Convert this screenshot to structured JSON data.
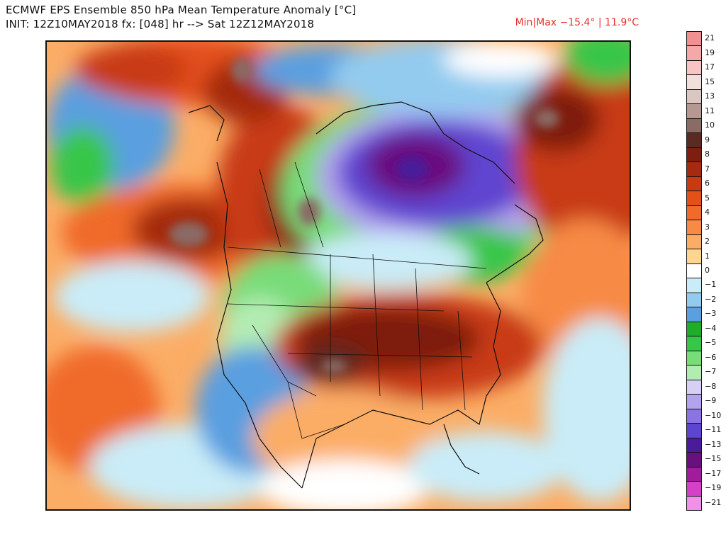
{
  "header": {
    "title_line1": "ECMWF EPS Ensemble 850 hPa Mean Temperature Anomaly [°C]",
    "title_line2": "INIT: 12Z10MAY2018 fx: [048] hr --> Sat 12Z12MAY2018",
    "minmax_text": "Min|Max −15.4° | 11.9°C"
  },
  "map": {
    "region": "North America",
    "variable": "850 hPa Mean Temperature Anomaly",
    "unit": "°C",
    "min_value": -15.4,
    "max_value": 11.9
  },
  "colorbar": {
    "bins": [
      {
        "label": "21",
        "color": "#f09090"
      },
      {
        "label": "19",
        "color": "#f5a8a8"
      },
      {
        "label": "17",
        "color": "#f9c4c4"
      },
      {
        "label": "15",
        "color": "#efe0dc"
      },
      {
        "label": "13",
        "color": "#dac7c2"
      },
      {
        "label": "11",
        "color": "#b59891"
      },
      {
        "label": "10",
        "color": "#8a6b65"
      },
      {
        "label": "9",
        "color": "#5a2b22"
      },
      {
        "label": "8",
        "color": "#7e1e10"
      },
      {
        "label": "7",
        "color": "#a52a10"
      },
      {
        "label": "6",
        "color": "#c83a12"
      },
      {
        "label": "5",
        "color": "#e4501a"
      },
      {
        "label": "4",
        "color": "#f06a2c"
      },
      {
        "label": "3",
        "color": "#f78a45"
      },
      {
        "label": "2",
        "color": "#fbad66"
      },
      {
        "label": "1",
        "color": "#fdd58f"
      },
      {
        "label": "0",
        "color": "#ffffff"
      },
      {
        "label": "−1",
        "color": "#c9ecf8"
      },
      {
        "label": "−2",
        "color": "#93cbef"
      },
      {
        "label": "−3",
        "color": "#5a9fe0"
      },
      {
        "label": "−4",
        "color": "#1fae2a"
      },
      {
        "label": "−5",
        "color": "#38c648"
      },
      {
        "label": "−6",
        "color": "#78dc78"
      },
      {
        "label": "−7",
        "color": "#b3ecb3"
      },
      {
        "label": "−8",
        "color": "#d8d0f4"
      },
      {
        "label": "−9",
        "color": "#b3a3ee"
      },
      {
        "label": "−10",
        "color": "#8a73e4"
      },
      {
        "label": "−11",
        "color": "#5e45d0"
      },
      {
        "label": "−13",
        "color": "#4a1c9a"
      },
      {
        "label": "−15",
        "color": "#6a0f80"
      },
      {
        "label": "−17",
        "color": "#a01c9a"
      },
      {
        "label": "−19",
        "color": "#d440c8"
      },
      {
        "label": "−21",
        "color": "#f090e8"
      }
    ]
  }
}
